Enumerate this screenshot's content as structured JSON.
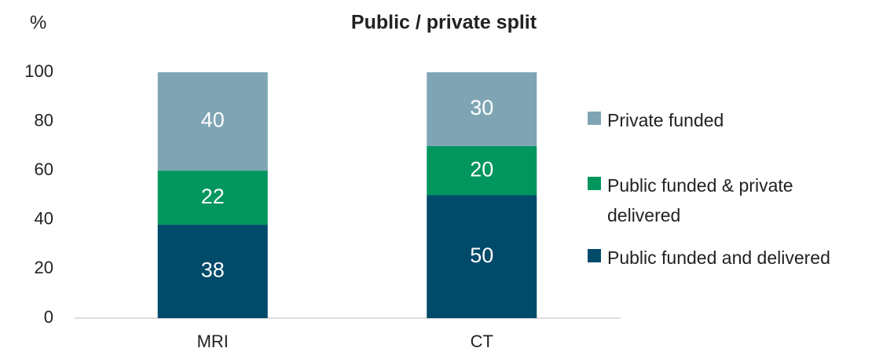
{
  "chart_data": {
    "type": "bar",
    "stacked": true,
    "title": "Public / private split",
    "y_label": "%",
    "categories": [
      "MRI",
      "CT"
    ],
    "series": [
      {
        "name": "Public funded and delivered",
        "color": "#004a6a",
        "values": [
          38,
          50
        ]
      },
      {
        "name": "Public funded & private delivered",
        "color": "#00965e",
        "values": [
          22,
          20
        ]
      },
      {
        "name": "Private funded",
        "color": "#7fa5b5",
        "values": [
          40,
          30
        ]
      }
    ],
    "ylim": [
      0,
      100
    ],
    "yticks": [
      0,
      20,
      40,
      60,
      80,
      100
    ],
    "legend": "right"
  }
}
